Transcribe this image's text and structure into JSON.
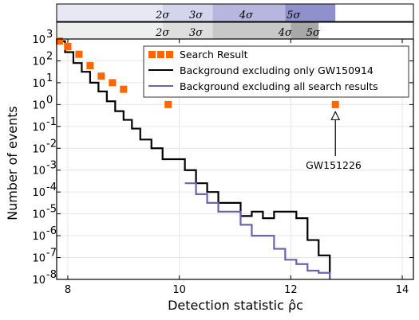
{
  "chart_data": {
    "type": "step-scatter",
    "xlabel": "Detection statistic ρ̂c",
    "ylabel": "Number of events",
    "xlim": [
      7.8,
      14.2
    ],
    "ylim_log10": [
      -8,
      3
    ],
    "grid": true,
    "xticks": [
      8,
      10,
      12,
      14
    ],
    "xtick_labels": [
      "8",
      "10",
      "12",
      "14"
    ],
    "ytick_exponents": [
      -8,
      -7,
      -6,
      -5,
      -4,
      -3,
      -2,
      -1,
      0,
      1,
      2,
      3
    ],
    "legend_position": "top-right",
    "series": [
      {
        "name": "Search Result",
        "kind": "markers",
        "color": "#ff6600",
        "points": [
          [
            7.85,
            800
          ],
          [
            8.0,
            450
          ],
          [
            8.2,
            200
          ],
          [
            8.4,
            60
          ],
          [
            8.6,
            20
          ],
          [
            8.8,
            10
          ],
          [
            9.0,
            5
          ],
          [
            9.8,
            1
          ],
          [
            12.8,
            1
          ]
        ]
      },
      {
        "name": "Background excluding only GW150914",
        "kind": "step",
        "color": "#000000",
        "edges": [
          7.8,
          7.95,
          8.1,
          8.25,
          8.4,
          8.55,
          8.7,
          8.85,
          9.0,
          9.15,
          9.3,
          9.5,
          9.7,
          9.9,
          10.1,
          10.3,
          10.5,
          10.7,
          10.9,
          11.1,
          11.3,
          11.5,
          11.7,
          11.9,
          12.1,
          12.3,
          12.5,
          12.7
        ],
        "values_log10": [
          2.9,
          2.4,
          1.9,
          1.5,
          1.0,
          0.6,
          0.15,
          -0.3,
          -0.7,
          -1.1,
          -1.6,
          -2.0,
          -2.5,
          -2.5,
          -3.0,
          -3.6,
          -4.0,
          -4.5,
          -4.5,
          -5.1,
          -4.9,
          -5.2,
          -4.9,
          -4.9,
          -5.2,
          -6.2,
          -6.9
        ]
      },
      {
        "name": "Background excluding all search results",
        "kind": "step",
        "color": "#7060b0",
        "edges": [
          10.1,
          10.3,
          10.5,
          10.7,
          10.9,
          11.1,
          11.3,
          11.5,
          11.7,
          11.9,
          12.1,
          12.3,
          12.5,
          12.7
        ],
        "values_log10": [
          -3.6,
          -4.1,
          -4.5,
          -4.9,
          -4.9,
          -5.5,
          -6.0,
          -6.0,
          -6.6,
          -7.1,
          -7.3,
          -7.6,
          -7.7
        ]
      }
    ],
    "annotations": [
      {
        "text": "GW151226",
        "x": 12.8,
        "y": 1
      }
    ],
    "sigma_bands": [
      {
        "labels": [
          "2σ",
          "3σ",
          "4σ",
          "5σ"
        ],
        "label_x": [
          9.7,
          10.3,
          11.2,
          12.05
        ],
        "band_edges": [
          7.8,
          9.7,
          10.6,
          11.9,
          12.8
        ],
        "band_colors": [
          "#e8e8f4",
          "#d4d4ec",
          "#b6b6df",
          "#9090cc"
        ]
      },
      {
        "labels": [
          "2σ",
          "3σ",
          "4σ",
          "5σ"
        ],
        "label_x": [
          9.7,
          10.3,
          11.9,
          12.4
        ],
        "band_edges": [
          7.8,
          9.7,
          10.6,
          12.0,
          12.5
        ],
        "band_colors": [
          "#eeeeee",
          "#dedede",
          "#c8c8c8",
          "#a8a8a8"
        ]
      }
    ]
  }
}
